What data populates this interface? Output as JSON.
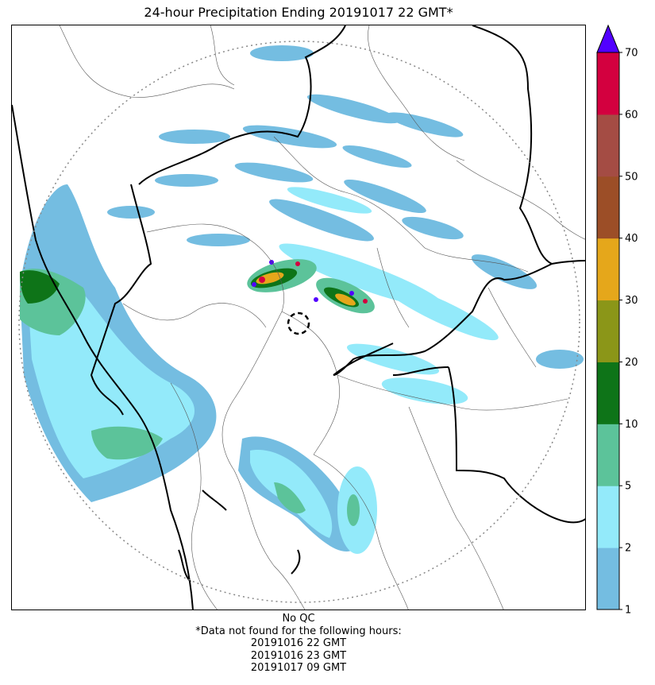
{
  "title": "24-hour Precipitation Ending 20191017 22 GMT*",
  "colorbar": {
    "levels": [
      1,
      2,
      5,
      10,
      20,
      30,
      40,
      50,
      60,
      70
    ],
    "tick_labels": [
      "1",
      "2",
      "5",
      "10",
      "20",
      "30",
      "40",
      "50",
      "60",
      "70"
    ],
    "colors": [
      "#74bde1",
      "#93eafa",
      "#5cc39a",
      "#0e7418",
      "#8b9618",
      "#e5a71b",
      "#9c4e27",
      "#a44c44",
      "#d3003f"
    ],
    "overflow_color": "#5200ff",
    "extend": "max"
  },
  "map": {
    "radar_range_ring": "dotted",
    "radar_site_marker": "dashed-circle",
    "palette": {
      "land_border": "#000000",
      "district_border": "#555555",
      "range_ring": "#888888"
    }
  },
  "footer": {
    "qc": "No QC",
    "missing_note": "*Data not found for the following hours:",
    "missing_hours": [
      "20191016 22 GMT",
      "20191016 23 GMT",
      "20191017 09 GMT"
    ]
  }
}
